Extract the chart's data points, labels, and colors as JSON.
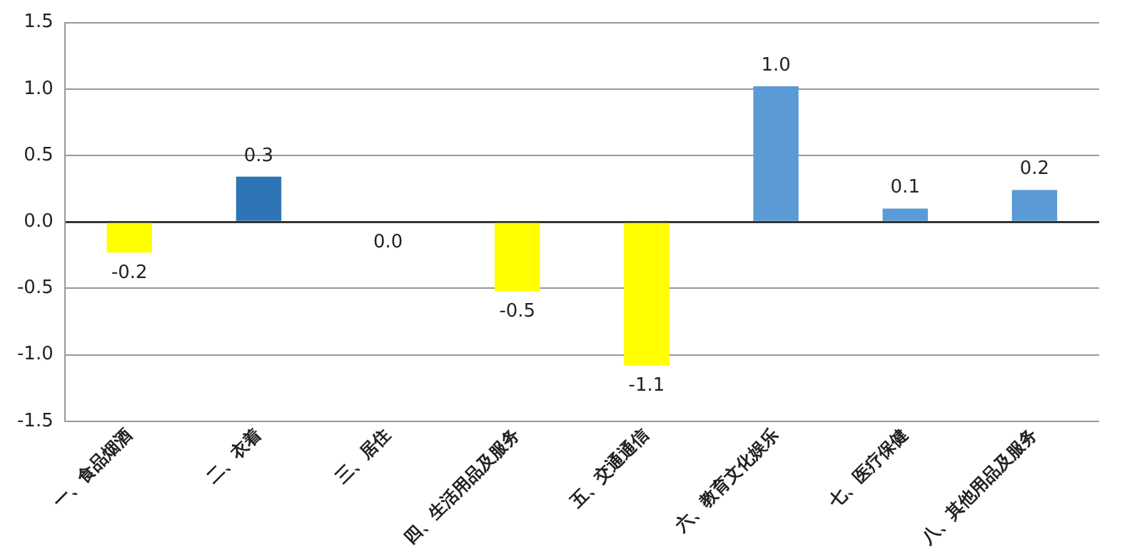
{
  "chart_data": {
    "type": "bar",
    "categories": [
      "一、食品烟酒",
      "二、衣着",
      "三、居住",
      "四、生活用品及服务",
      "五、交通通信",
      "六、教育文化娱乐",
      "七、医疗保健",
      "八、其他用品及服务"
    ],
    "values": [
      -0.23,
      0.34,
      0,
      -0.52,
      -1.08,
      1.02,
      0.1,
      0.24
    ],
    "colors": [
      "#ffff00",
      "#2e75b6",
      "#ffff00",
      "#ffff00",
      "#ffff00",
      "#5b9bd5",
      "#5b9bd5",
      "#5b9bd5"
    ],
    "value_labels": [
      "-0.2",
      "0.3",
      "0.0",
      "-0.5",
      "-1.1",
      "1.0",
      "0.1",
      "0.2"
    ],
    "ylim": [
      -1.5,
      1.5
    ],
    "yticks": [
      {
        "value": -1.5,
        "label": "-1.5"
      },
      {
        "value": -1,
        "label": "-1.0"
      },
      {
        "value": -0.5,
        "label": "-0.5"
      },
      {
        "value": 0,
        "label": "0.0"
      },
      {
        "value": 0.5,
        "label": "0.5"
      },
      {
        "value": 1,
        "label": "1.0"
      },
      {
        "value": 1.5,
        "label": "1.5"
      }
    ],
    "grid": "y",
    "legend": false
  }
}
